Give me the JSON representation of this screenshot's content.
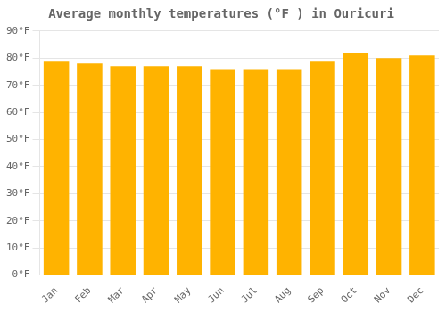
{
  "chart_data": {
    "type": "bar",
    "title": "Average monthly temperatures (°F ) in Ouricuri",
    "categories": [
      "Jan",
      "Feb",
      "Mar",
      "Apr",
      "May",
      "Jun",
      "Jul",
      "Aug",
      "Sep",
      "Oct",
      "Nov",
      "Dec"
    ],
    "values": [
      79,
      78,
      77,
      77,
      77,
      76,
      76,
      76,
      79,
      82,
      80,
      81
    ],
    "color": "#FFB300",
    "ylim": [
      0,
      90
    ],
    "yticks": [
      {
        "value": 0,
        "label": "0°F"
      },
      {
        "value": 10,
        "label": "10°F"
      },
      {
        "value": 20,
        "label": "20°F"
      },
      {
        "value": 30,
        "label": "30°F"
      },
      {
        "value": 40,
        "label": "40°F"
      },
      {
        "value": 50,
        "label": "50°F"
      },
      {
        "value": 60,
        "label": "60°F"
      },
      {
        "value": 70,
        "label": "70°F"
      },
      {
        "value": 80,
        "label": "80°F"
      },
      {
        "value": 90,
        "label": "90°F"
      }
    ],
    "grid": true
  }
}
